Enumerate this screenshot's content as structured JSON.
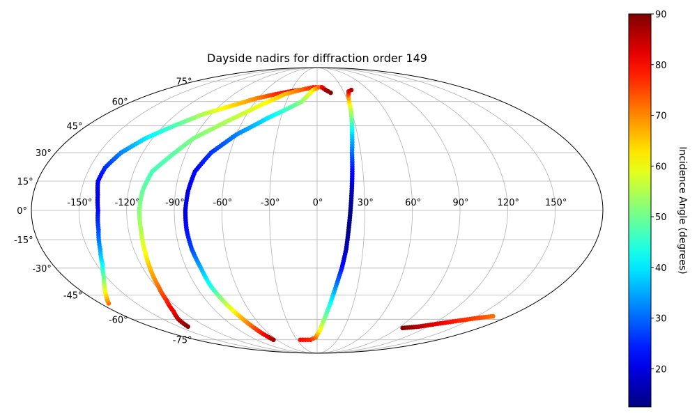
{
  "chart_data": {
    "type": "scatter",
    "projection": "mollweide",
    "title": "Dayside nadirs for diffraction order 149",
    "x_tick_labels": [
      "-150°",
      "-120°",
      "-90°",
      "-60°",
      "-30°",
      "0°",
      "30°",
      "60°",
      "90°",
      "120°",
      "150°"
    ],
    "y_tick_labels": [
      "-75°",
      "-60°",
      "-45°",
      "-30°",
      "-15°",
      "0°",
      "15°",
      "30°",
      "45°",
      "60°",
      "75°"
    ],
    "grid": true,
    "colorbar": {
      "label": "Incidence Angle (degrees)",
      "range": [
        12.5,
        90
      ],
      "tick_labels": [
        "20",
        "30",
        "40",
        "50",
        "60",
        "70",
        "80",
        "90"
      ],
      "colormap": "jet"
    },
    "series": [
      {
        "points": [
          [
            -173,
            -50,
            72
          ],
          [
            -165,
            -45,
            64
          ],
          [
            -158,
            -40,
            57
          ],
          [
            -152,
            -35,
            50
          ],
          [
            -146,
            -28,
            42
          ],
          [
            -142,
            -20,
            35
          ],
          [
            -139,
            -10,
            28
          ],
          [
            -138,
            0,
            23
          ],
          [
            -139,
            8,
            21
          ],
          [
            -141,
            15,
            22
          ],
          [
            -140,
            22,
            25
          ],
          [
            -135,
            30,
            32
          ],
          [
            -125,
            38,
            40
          ],
          [
            -112,
            45,
            47
          ],
          [
            -97,
            52,
            55
          ],
          [
            -80,
            57,
            63
          ],
          [
            -62,
            62,
            70
          ],
          [
            -45,
            65,
            77
          ],
          [
            -30,
            67,
            82
          ],
          [
            -20,
            68,
            85
          ]
        ]
      },
      {
        "points": [
          [
            -140,
            -65,
            90
          ],
          [
            -135,
            -60,
            86
          ],
          [
            -128,
            -55,
            82
          ],
          [
            -122,
            -48,
            78
          ],
          [
            -118,
            -40,
            72
          ],
          [
            -115,
            -30,
            66
          ],
          [
            -113,
            -20,
            60
          ],
          [
            -112,
            -10,
            55
          ],
          [
            -112,
            0,
            52
          ],
          [
            -111,
            10,
            49
          ],
          [
            -108,
            20,
            47
          ],
          [
            -100,
            28,
            48
          ],
          [
            -90,
            38,
            51
          ],
          [
            -72,
            48,
            55
          ],
          [
            -52,
            58,
            60
          ],
          [
            -35,
            65,
            66
          ],
          [
            -20,
            68,
            72
          ],
          [
            -5,
            70,
            78
          ],
          [
            5,
            70,
            82
          ]
        ]
      },
      {
        "points": [
          [
            -65,
            -75,
            88
          ],
          [
            -68,
            -70,
            80
          ],
          [
            -72,
            -60,
            68
          ],
          [
            -76,
            -50,
            56
          ],
          [
            -79,
            -40,
            44
          ],
          [
            -80,
            -30,
            36
          ],
          [
            -82,
            -20,
            28
          ],
          [
            -83,
            -10,
            23
          ],
          [
            -83,
            0,
            20
          ],
          [
            -82,
            10,
            20
          ],
          [
            -80,
            20,
            22
          ],
          [
            -73,
            30,
            26
          ],
          [
            -60,
            40,
            32
          ],
          [
            -40,
            50,
            40
          ],
          [
            -15,
            60,
            52
          ],
          [
            -5,
            68,
            62
          ],
          [
            2,
            70,
            72
          ],
          [
            6,
            70,
            80
          ],
          [
            10,
            68,
            87
          ],
          [
            15,
            66,
            90
          ]
        ]
      },
      {
        "points": [
          [
            -25,
            -75,
            80
          ],
          [
            -10,
            -75,
            78
          ],
          [
            -2,
            -73,
            72
          ],
          [
            3,
            -68,
            62
          ],
          [
            7,
            -60,
            52
          ],
          [
            11,
            -50,
            43
          ],
          [
            14,
            -40,
            33
          ],
          [
            17,
            -30,
            24
          ],
          [
            19,
            -20,
            17
          ],
          [
            20,
            -10,
            13
          ],
          [
            21,
            0,
            13
          ],
          [
            22,
            10,
            17
          ],
          [
            23,
            20,
            22
          ],
          [
            24,
            30,
            30
          ],
          [
            26,
            40,
            38
          ],
          [
            28,
            48,
            48
          ],
          [
            30,
            55,
            56
          ],
          [
            31,
            60,
            64
          ],
          [
            33,
            64,
            72
          ],
          [
            36,
            67,
            82
          ],
          [
            40,
            68,
            86
          ]
        ]
      },
      {
        "points": [
          [
            95,
            -66,
            90
          ],
          [
            110,
            -65,
            86
          ],
          [
            125,
            -63,
            82
          ],
          [
            140,
            -61,
            78
          ],
          [
            155,
            -59,
            75
          ],
          [
            165,
            -58,
            72
          ]
        ]
      }
    ]
  }
}
